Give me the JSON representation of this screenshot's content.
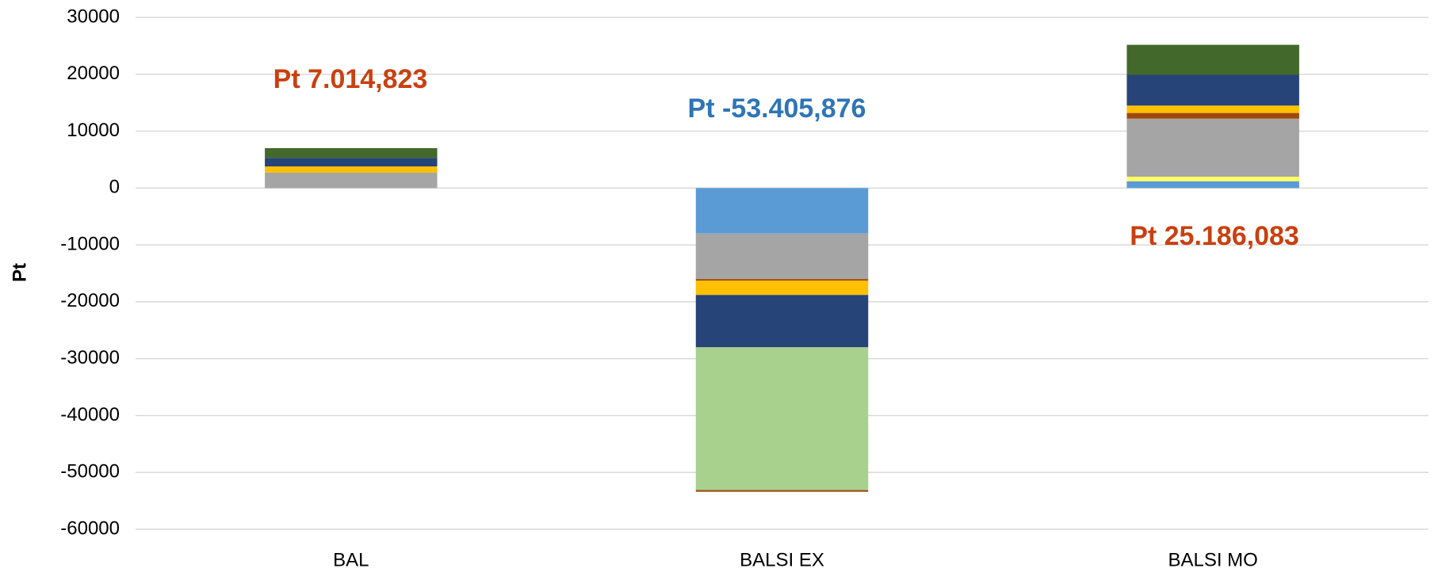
{
  "chart_data": {
    "type": "stacked_bar",
    "y_label": "Pt",
    "categories": [
      "BAL",
      "BALSI EX",
      "BALSI MO"
    ],
    "series": [
      {
        "color": "#5b9bd5",
        "values": [
          0,
          -8000,
          1200
        ]
      },
      {
        "color": "#ffff66",
        "values": [
          0,
          0,
          800
        ]
      },
      {
        "color": "#a5a5a5",
        "values": [
          2700,
          -8000,
          10200
        ]
      },
      {
        "color": "#9e480e",
        "values": [
          0,
          -300,
          1000
        ]
      },
      {
        "color": "#ffc000",
        "values": [
          1100,
          -2500,
          1300
        ]
      },
      {
        "color": "#264478",
        "values": [
          1500,
          -9200,
          5400
        ]
      },
      {
        "color": "#a9d18e",
        "values": [
          0,
          -25106,
          0
        ]
      },
      {
        "color": "#43682b",
        "values": [
          1715,
          0,
          5286
        ]
      },
      {
        "color": "#9e480e",
        "values": [
          0,
          -300,
          0
        ]
      }
    ],
    "annotations": [
      {
        "text": "Pt 7.014,823",
        "color": "#c9400f"
      },
      {
        "text": "Pt -53.405,876",
        "color": "#2e75b6"
      },
      {
        "text": "Pt 25.186,083",
        "color": "#c9400f"
      }
    ],
    "ylim": [
      -60000,
      30000
    ],
    "yticks": [
      -60000,
      -50000,
      -40000,
      -30000,
      -20000,
      -10000,
      0,
      10000,
      20000,
      30000
    ],
    "grid": true
  }
}
